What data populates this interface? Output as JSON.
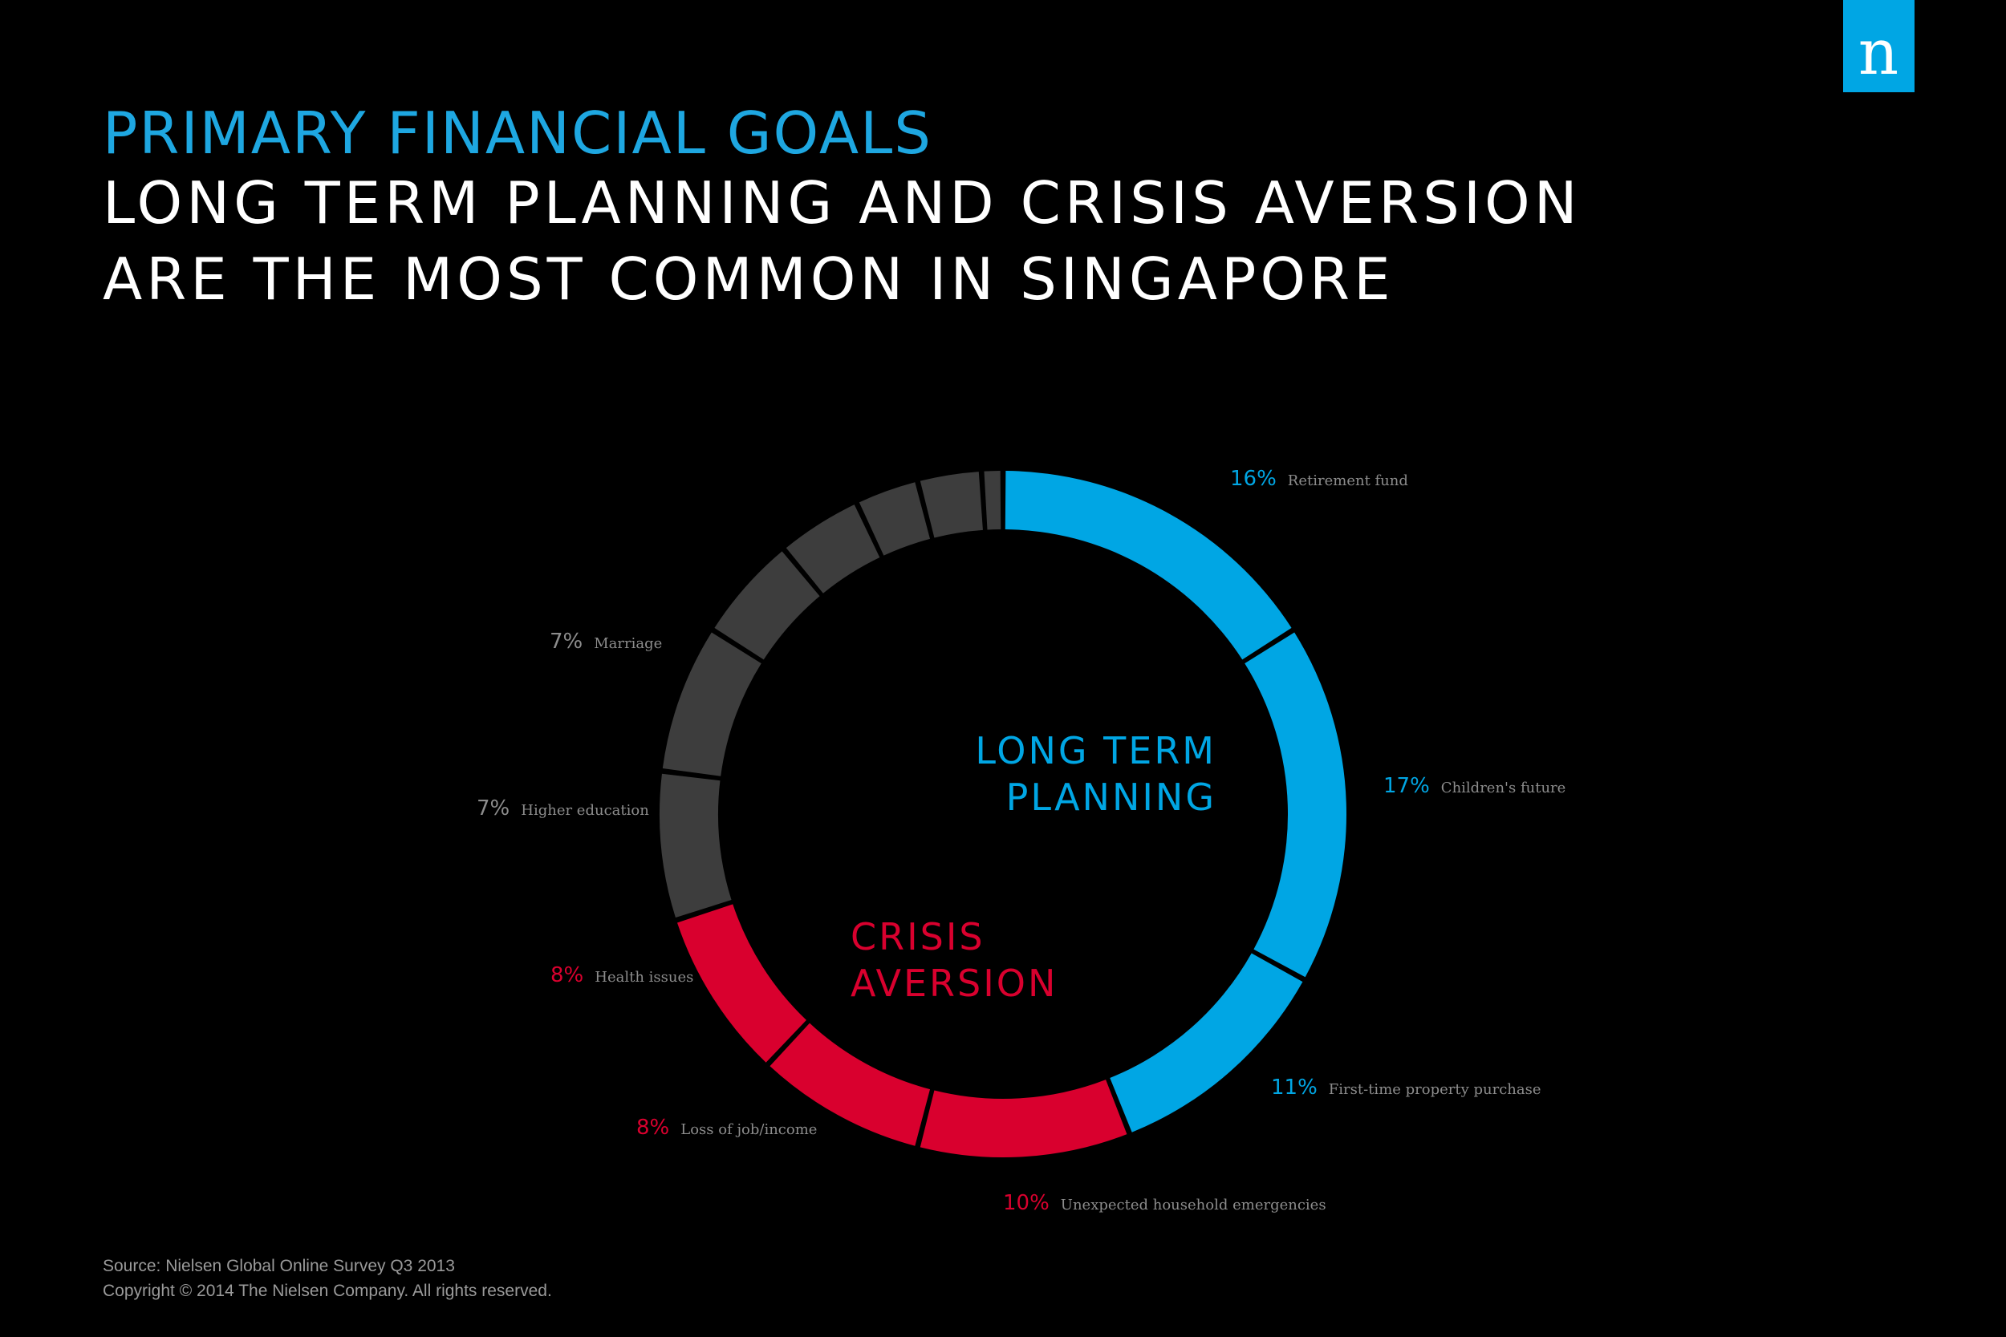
{
  "header": {
    "kicker": "PRIMARY FINANCIAL GOALS",
    "line1": "LONG TERM PLANNING AND CRISIS AVERSION",
    "line2": "ARE THE MOST COMMON IN SINGAPORE"
  },
  "logo": {
    "letter": "n",
    "icon": "nielsen-logo-icon"
  },
  "colors": {
    "long_term": "#00a6e4",
    "crisis": "#d9002e",
    "other": "#3d3d3d",
    "label_text": "#8c8c8c",
    "background": "#000000"
  },
  "chart_data": {
    "type": "donut",
    "groups": [
      {
        "name": "LONG TERM PLANNING",
        "color_key": "long_term"
      },
      {
        "name": "CRISIS AVERSION",
        "color_key": "crisis"
      }
    ],
    "group_label_lines": {
      "long_term": [
        "LONG TERM",
        "PLANNING"
      ],
      "crisis": [
        "CRISIS",
        "AVERSION"
      ]
    },
    "slices": [
      {
        "category": "Retirement fund",
        "value": 16,
        "label": "16%",
        "group": "long_term"
      },
      {
        "category": "Children's future",
        "value": 17,
        "label": "17%",
        "group": "long_term"
      },
      {
        "category": "First-time property purchase",
        "value": 11,
        "label": "11%",
        "group": "long_term"
      },
      {
        "category": "Unexpected household emergencies",
        "value": 10,
        "label": "10%",
        "group": "crisis"
      },
      {
        "category": "Loss of job/income",
        "value": 8,
        "label": "8%",
        "group": "crisis"
      },
      {
        "category": "Health issues",
        "value": 8,
        "label": "8%",
        "group": "crisis"
      },
      {
        "category": "Higher education",
        "value": 7,
        "label": "7%",
        "group": "other"
      },
      {
        "category": "Marriage",
        "value": 7,
        "label": "7%",
        "group": "other"
      },
      {
        "category": "",
        "value": 5,
        "label": "",
        "group": "other"
      },
      {
        "category": "",
        "value": 4,
        "label": "",
        "group": "other"
      },
      {
        "category": "",
        "value": 3,
        "label": "",
        "group": "other"
      },
      {
        "category": "",
        "value": 3,
        "label": "",
        "group": "other"
      },
      {
        "category": "",
        "value": 1,
        "label": "",
        "group": "other"
      }
    ]
  },
  "footer": {
    "source": "Source: Nielsen Global Online Survey Q3 2013",
    "copyright": "Copyright © 2014 The Nielsen Company. All rights reserved."
  }
}
